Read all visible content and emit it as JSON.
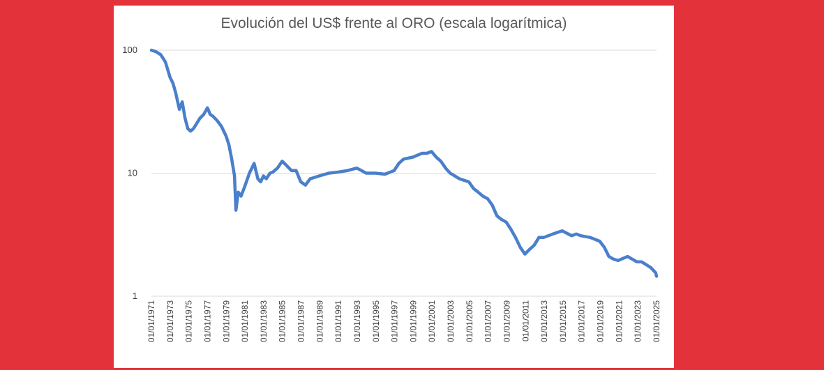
{
  "chart_data": {
    "type": "line",
    "title": "Evolución del US$ frente al ORO  (escala logarítmica)",
    "xlabel": "",
    "ylabel": "",
    "y_scale": "log",
    "ylim": [
      1,
      100
    ],
    "y_ticks": [
      "100",
      "10",
      "1"
    ],
    "grid": true,
    "legend": "none",
    "x_tick_labels": [
      "01/01/1971",
      "01/01/1973",
      "01/01/1975",
      "01/01/1977",
      "01/01/1979",
      "01/01/1981",
      "01/01/1983",
      "01/01/1985",
      "01/01/1987",
      "01/01/1989",
      "01/01/1991",
      "01/01/1993",
      "01/01/1995",
      "01/01/1997",
      "01/01/1999",
      "01/01/2001",
      "01/01/2003",
      "01/01/2005",
      "01/01/2007",
      "01/01/2009",
      "01/01/2011",
      "01/01/2013",
      "01/01/2015",
      "01/01/2017",
      "01/01/2019",
      "01/01/2021",
      "01/01/2023",
      "01/01/2025"
    ],
    "line_color": "#4a7fcb",
    "series": [
      {
        "x": [
          1971.0,
          1971.5,
          1972.0,
          1972.5,
          1973.0,
          1973.3,
          1973.6,
          1974.0,
          1974.3,
          1974.6,
          1974.9,
          1975.2,
          1975.5,
          1975.8,
          1976.2,
          1976.6,
          1977.0,
          1977.3,
          1977.6,
          1978.0,
          1978.5,
          1979.0,
          1979.3,
          1979.6,
          1979.9,
          1980.05,
          1980.3,
          1980.6,
          1981.0,
          1981.5,
          1982.0,
          1982.4,
          1982.7,
          1983.0,
          1983.3,
          1983.7,
          1984.0,
          1984.5,
          1985.0,
          1985.5,
          1986.0,
          1986.5,
          1987.0,
          1987.5,
          1988.0,
          1989.0,
          1990.0,
          1991.0,
          1992.0,
          1993.0,
          1993.5,
          1994.0,
          1995.0,
          1996.0,
          1997.0,
          1997.5,
          1998.0,
          1999.0,
          1999.5,
          2000.0,
          2000.5,
          2001.0,
          2001.5,
          2002.0,
          2002.5,
          2003.0,
          2004.0,
          2005.0,
          2005.5,
          2006.0,
          2006.5,
          2007.0,
          2007.5,
          2008.0,
          2008.5,
          2009.0,
          2009.5,
          2010.0,
          2010.5,
          2011.0,
          2011.5,
          2012.0,
          2012.5,
          2013.0,
          2013.5,
          2014.0,
          2015.0,
          2016.0,
          2016.5,
          2017.0,
          2018.0,
          2019.0,
          2019.5,
          2020.0,
          2020.5,
          2021.0,
          2022.0,
          2022.5,
          2023.0,
          2023.5,
          2024.0,
          2024.5,
          2025.0,
          2025.1
        ],
        "y": [
          100,
          97,
          92,
          80,
          60,
          54,
          45,
          33,
          38,
          28,
          23,
          22,
          23,
          25,
          28,
          30,
          34,
          30,
          29,
          27,
          24,
          20,
          17,
          13,
          9.5,
          5,
          7,
          6.5,
          7.8,
          10,
          12,
          9,
          8.5,
          9.5,
          9,
          10,
          10.2,
          11,
          12.5,
          11.5,
          10.5,
          10.5,
          8.5,
          8,
          9,
          9.5,
          10,
          10.2,
          10.5,
          11,
          10.5,
          10,
          10,
          9.8,
          10.5,
          12,
          13,
          13.5,
          14,
          14.5,
          14.5,
          15,
          13.5,
          12.5,
          11,
          10,
          9,
          8.5,
          7.5,
          7,
          6.5,
          6.2,
          5.5,
          4.5,
          4.2,
          4,
          3.5,
          3,
          2.5,
          2.2,
          2.4,
          2.6,
          3,
          3,
          3.1,
          3.2,
          3.4,
          3.1,
          3.2,
          3.1,
          3,
          2.8,
          2.5,
          2.1,
          2,
          1.95,
          2.1,
          2,
          1.9,
          1.9,
          1.8,
          1.7,
          1.55,
          1.45
        ]
      }
    ]
  }
}
